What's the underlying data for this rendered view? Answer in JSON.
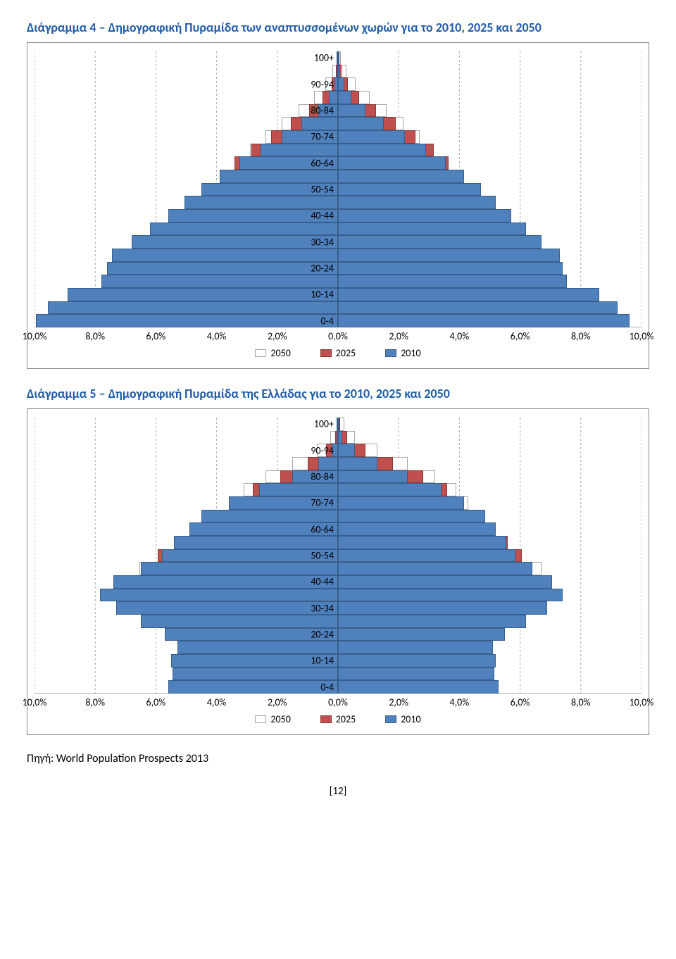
{
  "page_number": "[12]",
  "source_text": "Πηγή: World Population Prospects 2013",
  "colors": {
    "title": "#1f5ba8",
    "s2010_fill": "#4f81bd",
    "s2010_border": "#385d8a",
    "s2025_fill": "#c0504d",
    "s2025_border": "#8c3a38",
    "s2050_fill": "#ffffff",
    "s2050_border": "#a6a6a6",
    "grid": "#aaaaaa"
  },
  "axis": {
    "max_percent": 10,
    "ticks": [
      "10,0%",
      "8,0%",
      "6,0%",
      "4,0%",
      "2,0%",
      "0,0%",
      "2,0%",
      "4,0%",
      "6,0%",
      "8,0%",
      "10,0%"
    ]
  },
  "age_labels": [
    "100+",
    "90-94",
    "80-84",
    "70-74",
    "60-64",
    "50-54",
    "40-44",
    "30-34",
    "20-24",
    "10-14",
    "0-4"
  ],
  "legend": [
    {
      "label": "2050",
      "fill": "#ffffff",
      "border": "#a6a6a6"
    },
    {
      "label": "2025",
      "fill": "#c0504d",
      "border": "#8c3a38"
    },
    {
      "label": "2010",
      "fill": "#4f81bd",
      "border": "#385d8a"
    }
  ],
  "chart1": {
    "title": "Διάγραμμα 4 – Δημογραφική Πυραμίδα των αναπτυσσομένων χωρών για το 2010, 2025 και 2050",
    "rows": [
      {
        "s2010": {
          "l": 0.01,
          "r": 0.02
        },
        "s2025": {
          "l": 0.01,
          "r": 0.03
        },
        "s2050": {
          "l": 0.04,
          "r": 0.09
        }
      },
      {
        "s2010": {
          "l": 0.04,
          "r": 0.07
        },
        "s2025": {
          "l": 0.07,
          "r": 0.12
        },
        "s2050": {
          "l": 0.18,
          "r": 0.27
        }
      },
      {
        "s2010": {
          "l": 0.12,
          "r": 0.2
        },
        "s2025": {
          "l": 0.22,
          "r": 0.33
        },
        "s2050": {
          "l": 0.42,
          "r": 0.58
        }
      },
      {
        "s2010": {
          "l": 0.3,
          "r": 0.45
        },
        "s2025": {
          "l": 0.5,
          "r": 0.7
        },
        "s2050": {
          "l": 0.8,
          "r": 1.05
        }
      },
      {
        "s2010": {
          "l": 0.65,
          "r": 0.9
        },
        "s2025": {
          "l": 0.95,
          "r": 1.25
        },
        "s2050": {
          "l": 1.3,
          "r": 1.6
        }
      },
      {
        "s2010": {
          "l": 1.2,
          "r": 1.5
        },
        "s2025": {
          "l": 1.55,
          "r": 1.9
        },
        "s2050": {
          "l": 1.85,
          "r": 2.15
        }
      },
      {
        "s2010": {
          "l": 1.85,
          "r": 2.2
        },
        "s2025": {
          "l": 2.2,
          "r": 2.55
        },
        "s2050": {
          "l": 2.4,
          "r": 2.7
        }
      },
      {
        "s2010": {
          "l": 2.55,
          "r": 2.9
        },
        "s2025": {
          "l": 2.85,
          "r": 3.15
        },
        "s2050": {
          "l": 2.9,
          "r": 3.15
        }
      },
      {
        "s2010": {
          "l": 3.25,
          "r": 3.55
        },
        "s2025": {
          "l": 3.4,
          "r": 3.65
        },
        "s2050": {
          "l": 3.3,
          "r": 3.55
        }
      },
      {
        "s2010": {
          "l": 3.9,
          "r": 4.15
        },
        "s2025": {
          "l": 3.85,
          "r": 4.05
        },
        "s2050": {
          "l": 3.6,
          "r": 3.8
        }
      },
      {
        "s2010": {
          "l": 4.5,
          "r": 4.7
        },
        "s2025": {
          "l": 4.25,
          "r": 4.4
        },
        "s2050": {
          "l": 3.8,
          "r": 3.95
        }
      },
      {
        "s2010": {
          "l": 5.05,
          "r": 5.2
        },
        "s2025": {
          "l": 4.55,
          "r": 4.65
        },
        "s2050": {
          "l": 3.95,
          "r": 4.05
        }
      },
      {
        "s2010": {
          "l": 5.6,
          "r": 5.7
        },
        "s2025": {
          "l": 4.8,
          "r": 4.85
        },
        "s2050": {
          "l": 4.05,
          "r": 4.1
        }
      },
      {
        "s2010": {
          "l": 6.2,
          "r": 6.2
        },
        "s2025": {
          "l": 5.0,
          "r": 5.0
        },
        "s2050": {
          "l": 4.1,
          "r": 4.1
        }
      },
      {
        "s2010": {
          "l": 6.8,
          "r": 6.7
        },
        "s2025": {
          "l": 5.2,
          "r": 5.15
        },
        "s2050": {
          "l": 4.15,
          "r": 4.1
        }
      },
      {
        "s2010": {
          "l": 7.45,
          "r": 7.3
        },
        "s2025": {
          "l": 5.4,
          "r": 5.3
        },
        "s2050": {
          "l": 4.2,
          "r": 4.15
        }
      },
      {
        "s2010": {
          "l": 7.6,
          "r": 7.4
        },
        "s2025": {
          "l": 5.8,
          "r": 5.65
        },
        "s2050": {
          "l": 4.45,
          "r": 4.35
        }
      },
      {
        "s2010": {
          "l": 7.8,
          "r": 7.55
        },
        "s2025": {
          "l": 6.5,
          "r": 6.3
        },
        "s2050": {
          "l": 5.0,
          "r": 4.85
        }
      },
      {
        "s2010": {
          "l": 8.9,
          "r": 8.6
        },
        "s2025": {
          "l": 7.5,
          "r": 7.2
        },
        "s2050": {
          "l": 5.8,
          "r": 5.6
        }
      },
      {
        "s2010": {
          "l": 9.55,
          "r": 9.2
        },
        "s2025": {
          "l": 8.3,
          "r": 7.95
        },
        "s2050": {
          "l": 6.6,
          "r": 6.35
        }
      },
      {
        "s2010": {
          "l": 9.95,
          "r": 9.6
        },
        "s2025": {
          "l": 8.8,
          "r": 8.4
        },
        "s2050": {
          "l": 7.3,
          "r": 7.0
        }
      }
    ]
  },
  "chart2": {
    "title": "Διάγραμμα 5 – Δημογραφική Πυραμίδα της Ελλάδας για το 2010, 2025 και 2050",
    "rows": [
      {
        "s2010": {
          "l": 0.01,
          "r": 0.05
        },
        "s2025": {
          "l": 0.02,
          "r": 0.08
        },
        "s2050": {
          "l": 0.05,
          "r": 0.2
        }
      },
      {
        "s2010": {
          "l": 0.04,
          "r": 0.15
        },
        "s2025": {
          "l": 0.1,
          "r": 0.3
        },
        "s2050": {
          "l": 0.25,
          "r": 0.55
        }
      },
      {
        "s2010": {
          "l": 0.2,
          "r": 0.55
        },
        "s2025": {
          "l": 0.4,
          "r": 0.9
        },
        "s2050": {
          "l": 0.7,
          "r": 1.3
        }
      },
      {
        "s2010": {
          "l": 0.65,
          "r": 1.3
        },
        "s2025": {
          "l": 1.0,
          "r": 1.8
        },
        "s2050": {
          "l": 1.5,
          "r": 2.3
        }
      },
      {
        "s2010": {
          "l": 1.5,
          "r": 2.3
        },
        "s2025": {
          "l": 1.9,
          "r": 2.8
        },
        "s2050": {
          "l": 2.4,
          "r": 3.2
        }
      },
      {
        "s2010": {
          "l": 2.6,
          "r": 3.4
        },
        "s2025": {
          "l": 2.8,
          "r": 3.6
        },
        "s2050": {
          "l": 3.1,
          "r": 3.9
        }
      },
      {
        "s2010": {
          "l": 3.6,
          "r": 4.15
        },
        "s2025": {
          "l": 3.4,
          "r": 4.1
        },
        "s2050": {
          "l": 3.5,
          "r": 4.3
        }
      },
      {
        "s2010": {
          "l": 4.5,
          "r": 4.85
        },
        "s2025": {
          "l": 3.8,
          "r": 4.3
        },
        "s2050": {
          "l": 3.85,
          "r": 4.45
        }
      },
      {
        "s2010": {
          "l": 4.9,
          "r": 5.2
        },
        "s2025": {
          "l": 4.7,
          "r": 5.1
        },
        "s2050": {
          "l": 4.3,
          "r": 4.9
        }
      },
      {
        "s2010": {
          "l": 5.4,
          "r": 5.55
        },
        "s2025": {
          "l": 5.4,
          "r": 5.6
        },
        "s2050": {
          "l": 5.15,
          "r": 5.4
        }
      },
      {
        "s2010": {
          "l": 5.8,
          "r": 5.85
        },
        "s2025": {
          "l": 5.95,
          "r": 6.05
        },
        "s2050": {
          "l": 5.7,
          "r": 5.9
        }
      },
      {
        "s2010": {
          "l": 6.5,
          "r": 6.4
        },
        "s2025": {
          "l": 6.3,
          "r": 6.35
        },
        "s2050": {
          "l": 6.55,
          "r": 6.7
        }
      },
      {
        "s2010": {
          "l": 7.4,
          "r": 7.05
        },
        "s2025": {
          "l": 6.1,
          "r": 6.0
        },
        "s2050": {
          "l": 7.0,
          "r": 6.85
        }
      },
      {
        "s2010": {
          "l": 7.85,
          "r": 7.4
        },
        "s2025": {
          "l": 5.9,
          "r": 5.8
        },
        "s2050": {
          "l": 6.35,
          "r": 6.25
        }
      },
      {
        "s2010": {
          "l": 7.3,
          "r": 6.9
        },
        "s2025": {
          "l": 5.55,
          "r": 5.45
        },
        "s2050": {
          "l": 5.75,
          "r": 5.75
        }
      },
      {
        "s2010": {
          "l": 6.5,
          "r": 6.2
        },
        "s2025": {
          "l": 5.25,
          "r": 5.1
        },
        "s2050": {
          "l": 5.0,
          "r": 5.1
        }
      },
      {
        "s2010": {
          "l": 5.7,
          "r": 5.5
        },
        "s2025": {
          "l": 5.3,
          "r": 5.05
        },
        "s2050": {
          "l": 4.8,
          "r": 4.8
        }
      },
      {
        "s2010": {
          "l": 5.3,
          "r": 5.1
        },
        "s2025": {
          "l": 5.3,
          "r": 5.05
        },
        "s2050": {
          "l": 4.8,
          "r": 4.75
        }
      },
      {
        "s2010": {
          "l": 5.5,
          "r": 5.2
        },
        "s2025": {
          "l": 4.9,
          "r": 4.65
        },
        "s2050": {
          "l": 4.9,
          "r": 4.75
        }
      },
      {
        "s2010": {
          "l": 5.45,
          "r": 5.15
        },
        "s2025": {
          "l": 4.85,
          "r": 4.6
        },
        "s2050": {
          "l": 4.95,
          "r": 4.7
        }
      },
      {
        "s2010": {
          "l": 5.6,
          "r": 5.3
        },
        "s2025": {
          "l": 5.1,
          "r": 4.85
        },
        "s2050": {
          "l": 4.75,
          "r": 4.55
        }
      }
    ]
  }
}
